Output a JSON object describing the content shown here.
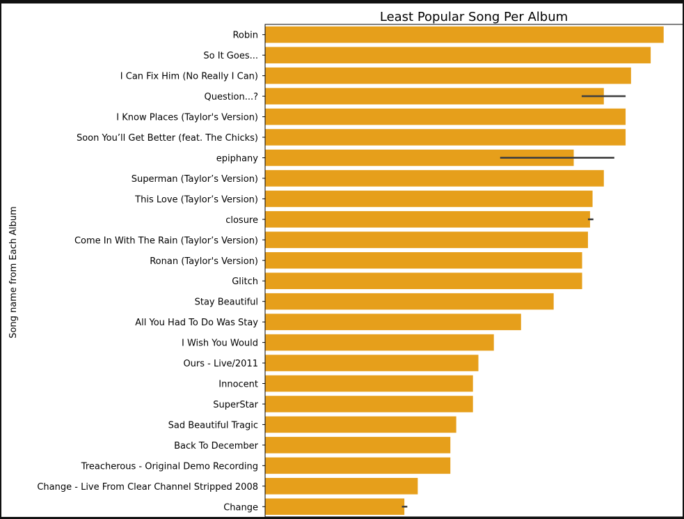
{
  "chart_data": {
    "type": "bar",
    "orientation": "horizontal",
    "title": "Least Popular Song Per Album",
    "xlabel": "",
    "ylabel": "Song name from Each Album",
    "xlim": [
      0,
      1
    ],
    "bar_color": "#e69f1b",
    "errorbar_color": "#3f3f3f",
    "categories": [
      "Robin",
      "So It Goes...",
      "I Can Fix Him (No Really I Can)",
      "Question...?",
      "I Know Places (Taylor's Version)",
      "Soon You’ll Get Better (feat. The Chicks)",
      "epiphany",
      "Superman (Taylor’s Version)",
      "This Love (Taylor’s Version)",
      "closure",
      "Come In With The Rain (Taylor’s Version)",
      "Ronan (Taylor's Version)",
      "Glitch",
      "Stay Beautiful",
      "All You Had To Do Was Stay",
      "I Wish You Would",
      "Ours - Live/2011",
      "Innocent",
      "SuperStar",
      "Sad Beautiful Tragic",
      "Back To December",
      "Treacherous - Original Demo Recording",
      "Change - Live From Clear Channel Stripped 2008",
      "Change"
    ],
    "values": [
      0.953,
      0.922,
      0.875,
      0.81,
      0.862,
      0.862,
      0.738,
      0.81,
      0.783,
      0.777,
      0.772,
      0.758,
      0.758,
      0.69,
      0.612,
      0.547,
      0.51,
      0.497,
      0.497,
      0.457,
      0.443,
      0.443,
      0.365,
      0.333
    ],
    "error_bars": [
      null,
      null,
      null,
      [
        0.757,
        0.862
      ],
      null,
      null,
      [
        0.562,
        0.835
      ],
      null,
      null,
      [
        0.772,
        0.785
      ],
      null,
      null,
      null,
      null,
      null,
      null,
      null,
      null,
      null,
      null,
      null,
      null,
      null,
      [
        0.327,
        0.34
      ]
    ]
  }
}
